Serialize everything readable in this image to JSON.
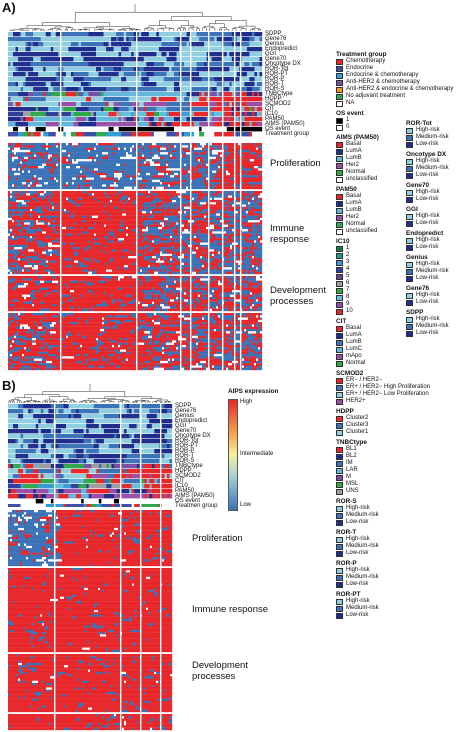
{
  "panels": {
    "a": {
      "label": "A)"
    },
    "b": {
      "label": "B)"
    }
  },
  "annotation_rows_a": [
    "SDPP",
    "Gene76",
    "Genius",
    "Endopredict",
    "GGI",
    "Gene70",
    "Oncotype DX",
    "ROR-Tot",
    "ROR-PT",
    "ROR-P",
    "ROR-T",
    "ROR-S",
    "TNBCtype",
    "HDPP",
    "SCMOD2",
    "CIT",
    "IC10",
    "PAM50",
    "AIMS (PAM50)",
    "OS event",
    "Treatment group"
  ],
  "annotation_rows_b": [
    "SDPP",
    "Gene76",
    "Genius",
    "Endopredict",
    "GGI",
    "Gene70",
    "Oncotype DX",
    "ROR-Tot",
    "ROR-PT",
    "ROR-P",
    "ROR-T",
    "ROR-S",
    "TNBCtype",
    "HDPP",
    "SCMOD2",
    "CIT",
    "IC10",
    "PAM50",
    "AIMS (PAM50)",
    "OS event",
    "Treatmen group"
  ],
  "block_labels_a": [
    "Proliferation",
    "Immune\nresponse",
    "Development\nprocesses"
  ],
  "block_labels_b": [
    "Proliferation",
    "Immune response",
    "Development\nprocesses"
  ],
  "colorbar": {
    "title": "AIPS expression",
    "high": "High",
    "mid": "Intermediate",
    "low": "Low"
  },
  "colors": {
    "red": "#e8272a",
    "blue": "#3a73b8",
    "navy": "#1f2d8c",
    "lightblue": "#8fcfe0",
    "white": "#ffffff"
  },
  "legend_col1": [
    {
      "title": "Treatment group",
      "items": [
        {
          "label": "Chemotherapy",
          "color": "#e8272a"
        },
        {
          "label": "Endocrine",
          "color": "#3b4fa8"
        },
        {
          "label": "Endocrine & chemotherapy",
          "color": "#2e9fd6"
        },
        {
          "label": "Anti-HER2 & chemotherapy",
          "color": "#7b4fa0"
        },
        {
          "label": "Anti-HER2 & endocrine & chemotherapy",
          "color": "#f29a1e"
        },
        {
          "label": "No adjuvant treatment",
          "color": "#2ea84a"
        },
        {
          "label": "NA",
          "color": "#ffffff"
        }
      ]
    },
    {
      "title": "OS event",
      "items": [
        {
          "label": "1",
          "color": "#000000"
        },
        {
          "label": "0",
          "color": "#ffffff"
        }
      ]
    },
    {
      "title": "AIMS (PAM50)",
      "items": [
        {
          "label": "Basal",
          "color": "#e8272a"
        },
        {
          "label": "LumA",
          "color": "#1f2d8c"
        },
        {
          "label": "LumB",
          "color": "#62b6dc"
        },
        {
          "label": "Her2",
          "color": "#9a4fa6"
        },
        {
          "label": "Normal",
          "color": "#2ea84a"
        },
        {
          "label": "unclassified",
          "color": "#ffffff"
        }
      ]
    },
    {
      "title": "PAM50",
      "items": [
        {
          "label": "Basal",
          "color": "#e8272a"
        },
        {
          "label": "LumA",
          "color": "#1f2d8c"
        },
        {
          "label": "LumB",
          "color": "#62b6dc"
        },
        {
          "label": "Her2",
          "color": "#9a4fa6"
        },
        {
          "label": "Normal",
          "color": "#2ea84a"
        },
        {
          "label": "unclassified",
          "color": "#ffffff"
        }
      ]
    },
    {
      "title": "IC10",
      "items": [
        {
          "label": "1",
          "color": "#1b7a3a"
        },
        {
          "label": "2",
          "color": "#1f9a8f"
        },
        {
          "label": "3",
          "color": "#3b9bd6"
        },
        {
          "label": "4",
          "color": "#2e3f9c"
        },
        {
          "label": "5",
          "color": "#6a3f99"
        },
        {
          "label": "6",
          "color": "#9e9e9e"
        },
        {
          "label": "7",
          "color": "#2ea84a"
        },
        {
          "label": "8",
          "color": "#60c0e0"
        },
        {
          "label": "9",
          "color": "#8e4fa8"
        },
        {
          "label": "10",
          "color": "#e8272a"
        }
      ]
    },
    {
      "title": "CIT",
      "items": [
        {
          "label": "Basal",
          "color": "#e8272a"
        },
        {
          "label": "LumA",
          "color": "#1f2d8c"
        },
        {
          "label": "LumB",
          "color": "#3a73b8"
        },
        {
          "label": "LumC",
          "color": "#62b6dc"
        },
        {
          "label": "mApo",
          "color": "#9a4fa6"
        },
        {
          "label": "Normal",
          "color": "#2ea84a"
        }
      ]
    },
    {
      "title": "SCMOD2",
      "items": [
        {
          "label": "ER− / HER2−",
          "color": "#e8272a"
        },
        {
          "label": "ER+ / HER2− High Proliferation",
          "color": "#3a73b8"
        },
        {
          "label": "ER+ / HER2− Low Proliferation",
          "color": "#8fcfe0"
        },
        {
          "label": "HER2+",
          "color": "#9a4fa6"
        }
      ]
    },
    {
      "title": "HDPP",
      "items": [
        {
          "label": "Cluster2",
          "color": "#e8272a"
        },
        {
          "label": "Cluster3",
          "color": "#3a73b8"
        },
        {
          "label": "Cluster1",
          "color": "#8fcfe0"
        }
      ]
    },
    {
      "title": "TNBCtype",
      "items": [
        {
          "label": "BL1",
          "color": "#e8272a"
        },
        {
          "label": "BL2",
          "color": "#1f2d8c"
        },
        {
          "label": "IM",
          "color": "#3a73b8"
        },
        {
          "label": "LAR",
          "color": "#62b6dc"
        },
        {
          "label": "M",
          "color": "#7b4fa0"
        },
        {
          "label": "MSL",
          "color": "#2ea84a"
        },
        {
          "label": "UNS",
          "color": "#9e9e9e"
        }
      ]
    },
    {
      "title": "ROR-S",
      "items": [
        {
          "label": "High-risk",
          "color": "#8fcfe0"
        },
        {
          "label": "Medium-risk",
          "color": "#3a73b8"
        },
        {
          "label": "Low-risk",
          "color": "#1f2d8c"
        }
      ]
    },
    {
      "title": "ROR-T",
      "items": [
        {
          "label": "High-risk",
          "color": "#8fcfe0"
        },
        {
          "label": "Medium-risk",
          "color": "#3a73b8"
        },
        {
          "label": "Low-risk",
          "color": "#1f2d8c"
        }
      ]
    },
    {
      "title": "ROR-P",
      "items": [
        {
          "label": "High-risk",
          "color": "#8fcfe0"
        },
        {
          "label": "Medium-risk",
          "color": "#3a73b8"
        },
        {
          "label": "Low-risk",
          "color": "#1f2d8c"
        }
      ]
    },
    {
      "title": "ROR-PT",
      "items": [
        {
          "label": "High-risk",
          "color": "#8fcfe0"
        },
        {
          "label": "Medium-risk",
          "color": "#3a73b8"
        },
        {
          "label": "Low-risk",
          "color": "#1f2d8c"
        }
      ]
    }
  ],
  "legend_col2": [
    {
      "title": "ROR-Tot",
      "items": [
        {
          "label": "High-risk",
          "color": "#8fcfe0"
        },
        {
          "label": "Medium-risk",
          "color": "#3a73b8"
        },
        {
          "label": "Low-risk",
          "color": "#1f2d8c"
        }
      ]
    },
    {
      "title": "Oncotype DX",
      "items": [
        {
          "label": "High-risk",
          "color": "#8fcfe0"
        },
        {
          "label": "Medium-risk",
          "color": "#3a73b8"
        },
        {
          "label": "Low-risk",
          "color": "#1f2d8c"
        }
      ]
    },
    {
      "title": "Gene70",
      "items": [
        {
          "label": "High-risk",
          "color": "#8fcfe0"
        },
        {
          "label": "Low-risk",
          "color": "#1f2d8c"
        }
      ]
    },
    {
      "title": "GGI",
      "items": [
        {
          "label": "High-risk",
          "color": "#8fcfe0"
        },
        {
          "label": "Low-risk",
          "color": "#1f2d8c"
        }
      ]
    },
    {
      "title": "Endopredict",
      "items": [
        {
          "label": "High-risk",
          "color": "#8fcfe0"
        },
        {
          "label": "Low-risk",
          "color": "#1f2d8c"
        }
      ]
    },
    {
      "title": "Genius",
      "items": [
        {
          "label": "High-risk",
          "color": "#8fcfe0"
        },
        {
          "label": "Medium-risk",
          "color": "#3a73b8"
        },
        {
          "label": "Low-risk",
          "color": "#1f2d8c"
        }
      ]
    },
    {
      "title": "Gene76",
      "items": [
        {
          "label": "High-risk",
          "color": "#8fcfe0"
        },
        {
          "label": "Low-risk",
          "color": "#1f2d8c"
        }
      ]
    },
    {
      "title": "SDPP",
      "items": [
        {
          "label": "High-risk",
          "color": "#8fcfe0"
        },
        {
          "label": "Medium-risk",
          "color": "#3a73b8"
        },
        {
          "label": "Low-risk",
          "color": "#1f2d8c"
        }
      ]
    }
  ]
}
